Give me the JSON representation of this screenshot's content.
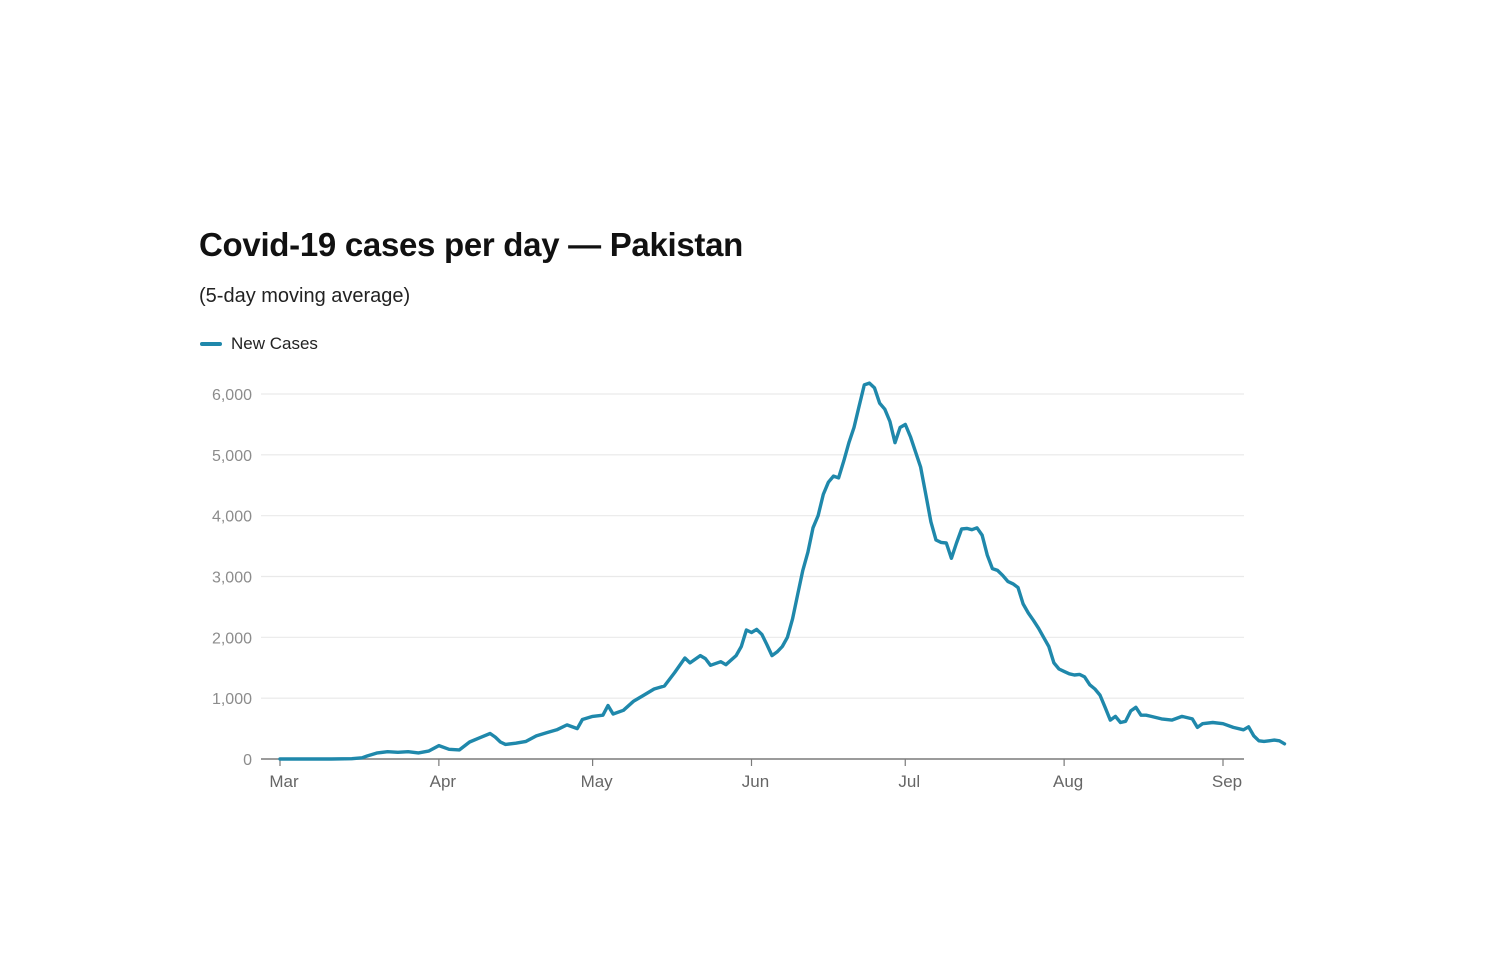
{
  "chart_data": {
    "type": "line",
    "title": "Covid-19 cases per day — Pakistan",
    "subtitle": "(5-day moving average)",
    "xlabel": "",
    "ylabel": "",
    "ylim": [
      0,
      6000
    ],
    "yticks": [
      0,
      1000,
      2000,
      3000,
      4000,
      5000,
      6000
    ],
    "ytick_labels": [
      "0",
      "1,000",
      "2,000",
      "3,000",
      "4,000",
      "5,000",
      "6,000"
    ],
    "xlim_days": [
      0,
      184
    ],
    "xticks": [
      {
        "label": "Mar",
        "day": 0
      },
      {
        "label": "Apr",
        "day": 31
      },
      {
        "label": "May",
        "day": 61
      },
      {
        "label": "Jun",
        "day": 92
      },
      {
        "label": "Jul",
        "day": 122
      },
      {
        "label": "Aug",
        "day": 153
      },
      {
        "label": "Sep",
        "day": 184
      }
    ],
    "grid": true,
    "legend_position": "top-left",
    "color": "#1f88ab",
    "series": [
      {
        "name": "New Cases",
        "points": [
          [
            0,
            0
          ],
          [
            5,
            0
          ],
          [
            10,
            0
          ],
          [
            14,
            5
          ],
          [
            16,
            20
          ],
          [
            17,
            50
          ],
          [
            19,
            100
          ],
          [
            21,
            120
          ],
          [
            23,
            110
          ],
          [
            25,
            120
          ],
          [
            27,
            100
          ],
          [
            29,
            130
          ],
          [
            31,
            220
          ],
          [
            33,
            160
          ],
          [
            35,
            150
          ],
          [
            37,
            280
          ],
          [
            39,
            350
          ],
          [
            41,
            420
          ],
          [
            42,
            360
          ],
          [
            43,
            280
          ],
          [
            44,
            240
          ],
          [
            46,
            260
          ],
          [
            48,
            290
          ],
          [
            50,
            380
          ],
          [
            52,
            430
          ],
          [
            54,
            480
          ],
          [
            56,
            560
          ],
          [
            58,
            500
          ],
          [
            59,
            650
          ],
          [
            61,
            700
          ],
          [
            63,
            720
          ],
          [
            64,
            880
          ],
          [
            65,
            740
          ],
          [
            67,
            800
          ],
          [
            69,
            950
          ],
          [
            71,
            1050
          ],
          [
            73,
            1150
          ],
          [
            75,
            1200
          ],
          [
            77,
            1420
          ],
          [
            79,
            1660
          ],
          [
            80,
            1580
          ],
          [
            82,
            1700
          ],
          [
            83,
            1650
          ],
          [
            84,
            1540
          ],
          [
            86,
            1600
          ],
          [
            87,
            1550
          ],
          [
            89,
            1700
          ],
          [
            90,
            1850
          ],
          [
            91,
            2120
          ],
          [
            92,
            2080
          ],
          [
            93,
            2130
          ],
          [
            94,
            2050
          ],
          [
            95,
            1880
          ],
          [
            96,
            1700
          ],
          [
            97,
            1760
          ],
          [
            98,
            1850
          ],
          [
            99,
            2000
          ],
          [
            100,
            2300
          ],
          [
            101,
            2700
          ],
          [
            102,
            3100
          ],
          [
            103,
            3400
          ],
          [
            104,
            3800
          ],
          [
            105,
            4000
          ],
          [
            106,
            4350
          ],
          [
            107,
            4550
          ],
          [
            108,
            4650
          ],
          [
            109,
            4620
          ],
          [
            110,
            4900
          ],
          [
            111,
            5200
          ],
          [
            112,
            5450
          ],
          [
            113,
            5800
          ],
          [
            114,
            6150
          ],
          [
            115,
            6180
          ],
          [
            116,
            6100
          ],
          [
            117,
            5850
          ],
          [
            118,
            5750
          ],
          [
            119,
            5550
          ],
          [
            120,
            5200
          ],
          [
            121,
            5450
          ],
          [
            122,
            5500
          ],
          [
            123,
            5300
          ],
          [
            124,
            5050
          ],
          [
            125,
            4800
          ],
          [
            126,
            4350
          ],
          [
            127,
            3900
          ],
          [
            128,
            3600
          ],
          [
            129,
            3560
          ],
          [
            130,
            3550
          ],
          [
            131,
            3300
          ],
          [
            132,
            3550
          ],
          [
            133,
            3780
          ],
          [
            134,
            3790
          ],
          [
            135,
            3770
          ],
          [
            136,
            3800
          ],
          [
            137,
            3680
          ],
          [
            138,
            3350
          ],
          [
            139,
            3130
          ],
          [
            140,
            3100
          ],
          [
            141,
            3020
          ],
          [
            142,
            2920
          ],
          [
            143,
            2880
          ],
          [
            144,
            2820
          ],
          [
            145,
            2550
          ],
          [
            146,
            2400
          ],
          [
            147,
            2280
          ],
          [
            148,
            2150
          ],
          [
            149,
            2000
          ],
          [
            150,
            1850
          ],
          [
            151,
            1580
          ],
          [
            152,
            1480
          ],
          [
            153,
            1440
          ],
          [
            154,
            1400
          ],
          [
            155,
            1380
          ],
          [
            156,
            1390
          ],
          [
            157,
            1350
          ],
          [
            158,
            1220
          ],
          [
            159,
            1150
          ],
          [
            160,
            1050
          ],
          [
            161,
            850
          ],
          [
            162,
            640
          ],
          [
            163,
            700
          ],
          [
            164,
            600
          ],
          [
            165,
            620
          ],
          [
            166,
            790
          ],
          [
            167,
            850
          ],
          [
            168,
            720
          ],
          [
            169,
            720
          ],
          [
            170,
            700
          ],
          [
            172,
            660
          ],
          [
            174,
            640
          ],
          [
            176,
            700
          ],
          [
            178,
            660
          ],
          [
            179,
            520
          ],
          [
            180,
            580
          ],
          [
            182,
            600
          ],
          [
            184,
            580
          ],
          [
            186,
            520
          ],
          [
            188,
            480
          ],
          [
            189,
            530
          ],
          [
            190,
            380
          ],
          [
            191,
            300
          ],
          [
            192,
            290
          ],
          [
            193,
            300
          ],
          [
            194,
            310
          ],
          [
            195,
            300
          ],
          [
            196,
            250
          ]
        ]
      }
    ]
  }
}
